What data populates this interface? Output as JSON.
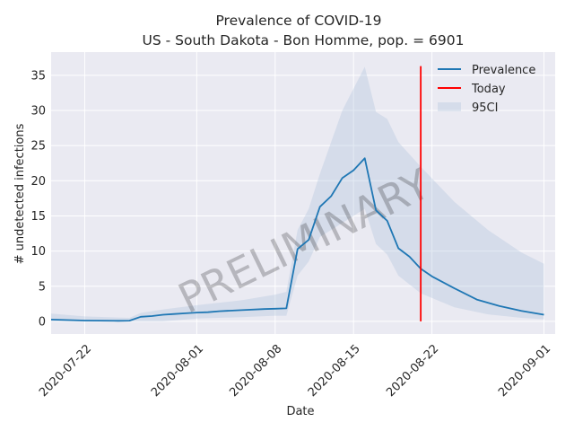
{
  "chart_data": {
    "type": "line",
    "title": "Prevalence of COVID-19",
    "subtitle": "US - South Dakota - Bon Homme, pop. = 6901",
    "xlabel": "Date",
    "ylabel": "# undetected infections",
    "x_start": "2020-07-19",
    "x_end": "2020-09-02",
    "ylim": [
      -1.8,
      38.3
    ],
    "xticks": [
      {
        "date": "2020-07-22",
        "label": "2020-07-22"
      },
      {
        "date": "2020-08-01",
        "label": "2020-08-01"
      },
      {
        "date": "2020-08-08",
        "label": "2020-08-08"
      },
      {
        "date": "2020-08-15",
        "label": "2020-08-15"
      },
      {
        "date": "2020-08-22",
        "label": "2020-08-22"
      },
      {
        "date": "2020-09-01",
        "label": "2020-09-01"
      }
    ],
    "yticks": [
      0,
      5,
      10,
      15,
      20,
      25,
      30,
      35
    ],
    "yticklabels": [
      "0",
      "5",
      "10",
      "15",
      "20",
      "25",
      "30",
      "35"
    ],
    "grid": true,
    "legend_position": "top-right",
    "series": [
      {
        "name": "Prevalence",
        "color": "#1f77b4",
        "points": [
          [
            "2020-07-19",
            0.25
          ],
          [
            "2020-07-22",
            0.12
          ],
          [
            "2020-07-25",
            0.08
          ],
          [
            "2020-07-26",
            0.1
          ],
          [
            "2020-07-27",
            0.65
          ],
          [
            "2020-07-28",
            0.75
          ],
          [
            "2020-07-29",
            0.95
          ],
          [
            "2020-07-30",
            1.05
          ],
          [
            "2020-07-31",
            1.15
          ],
          [
            "2020-08-01",
            1.25
          ],
          [
            "2020-08-02",
            1.3
          ],
          [
            "2020-08-03",
            1.45
          ],
          [
            "2020-08-05",
            1.6
          ],
          [
            "2020-08-07",
            1.75
          ],
          [
            "2020-08-08",
            1.8
          ],
          [
            "2020-08-09",
            1.85
          ],
          [
            "2020-08-10",
            10.3
          ],
          [
            "2020-08-11",
            11.6
          ],
          [
            "2020-08-12",
            16.3
          ],
          [
            "2020-08-13",
            17.8
          ],
          [
            "2020-08-14",
            20.4
          ],
          [
            "2020-08-15",
            21.5
          ],
          [
            "2020-08-16",
            23.2
          ],
          [
            "2020-08-17",
            15.8
          ],
          [
            "2020-08-18",
            14.3
          ],
          [
            "2020-08-19",
            10.4
          ],
          [
            "2020-08-20",
            9.2
          ],
          [
            "2020-08-21",
            7.5
          ],
          [
            "2020-08-22",
            6.4
          ],
          [
            "2020-08-24",
            4.7
          ],
          [
            "2020-08-26",
            3.1
          ],
          [
            "2020-08-28",
            2.2
          ],
          [
            "2020-08-30",
            1.5
          ],
          [
            "2020-09-01",
            0.95
          ]
        ]
      },
      {
        "name": "Today",
        "color": "#ff0000",
        "date": "2020-08-21",
        "y_range": [
          0,
          36.3
        ]
      },
      {
        "name": "95CI",
        "color": "#b0c4de",
        "opacity": 0.35,
        "bands": [
          [
            "2020-07-19",
            0,
            1.1
          ],
          [
            "2020-07-22",
            0,
            0.7
          ],
          [
            "2020-07-26",
            0,
            0.5
          ],
          [
            "2020-07-27",
            0,
            1.2
          ],
          [
            "2020-07-29",
            0,
            1.7
          ],
          [
            "2020-08-01",
            0.4,
            2.3
          ],
          [
            "2020-08-05",
            0.6,
            3.0
          ],
          [
            "2020-08-08",
            0.8,
            3.8
          ],
          [
            "2020-08-09",
            0.8,
            4.2
          ],
          [
            "2020-08-10",
            6.5,
            13.0
          ],
          [
            "2020-08-11",
            8.5,
            16.0
          ],
          [
            "2020-08-12",
            12.0,
            21.0
          ],
          [
            "2020-08-14",
            14.0,
            30.0
          ],
          [
            "2020-08-16",
            16.0,
            36.2
          ],
          [
            "2020-08-17",
            11.0,
            29.8
          ],
          [
            "2020-08-18",
            9.5,
            28.8
          ],
          [
            "2020-08-19",
            6.5,
            25.5
          ],
          [
            "2020-08-21",
            4.0,
            22.0
          ],
          [
            "2020-08-24",
            2.0,
            17.0
          ],
          [
            "2020-08-27",
            1.0,
            13.0
          ],
          [
            "2020-08-30",
            0.5,
            9.8
          ],
          [
            "2020-09-01",
            0.3,
            8.2
          ]
        ]
      }
    ],
    "annotations": [
      {
        "text": "PRELIMINARY",
        "type": "watermark"
      }
    ]
  }
}
